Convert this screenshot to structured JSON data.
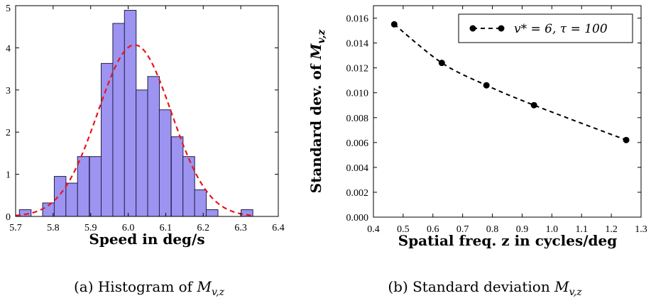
{
  "chart_data": [
    {
      "type": "bar",
      "subtype": "histogram",
      "xlabel": "Speed in deg/s",
      "caption": "(a) Histogram of M_{v,z}",
      "xlim": [
        5.7,
        6.4
      ],
      "ylim": [
        0,
        5
      ],
      "xticks": [
        5.7,
        5.8,
        5.9,
        6.0,
        6.1,
        6.2,
        6.3,
        6.4
      ],
      "xtick_labels": [
        "5.7",
        "5.8",
        "5.9",
        "6.0",
        "6.1",
        "6.2",
        "6.3",
        "6.4"
      ],
      "yticks": [
        0,
        1,
        2,
        3,
        4,
        5
      ],
      "ytick_labels": [
        "0",
        "1",
        "2",
        "3",
        "4",
        "5"
      ],
      "bin_width": 0.0312,
      "bin_starts": [
        5.71,
        5.741,
        5.772,
        5.803,
        5.834,
        5.865,
        5.897,
        5.928,
        5.959,
        5.99,
        6.021,
        6.052,
        6.083,
        6.115,
        6.146,
        6.177,
        6.208,
        6.239,
        6.27,
        6.301
      ],
      "values": [
        0.16,
        0.0,
        0.32,
        0.95,
        0.79,
        1.42,
        1.42,
        3.63,
        4.58,
        4.89,
        3.0,
        3.32,
        2.53,
        1.89,
        1.42,
        0.63,
        0.16,
        0.0,
        0.0,
        0.16
      ],
      "bar_color": "#9d93f0",
      "bar_edge_color": "#1f1f4a",
      "fit_curve": {
        "type": "normal",
        "mean": 6.017,
        "std": 0.098,
        "peak": 4.07,
        "color": "#e8161b",
        "style": "dashed"
      }
    },
    {
      "type": "line",
      "xlabel": "Spatial freq. z in cycles/deg",
      "ylabel": "Standard dev. of M_{v,z}",
      "caption": "(b) Standard deviation M_{v,z}",
      "xlim": [
        0.4,
        1.3
      ],
      "ylim": [
        0.0,
        0.017
      ],
      "xticks": [
        0.4,
        0.5,
        0.6,
        0.7,
        0.8,
        0.9,
        1.0,
        1.1,
        1.2,
        1.3
      ],
      "xtick_labels": [
        "0.4",
        "0.5",
        "0.6",
        "0.7",
        "0.8",
        "0.9",
        "1.0",
        "1.1",
        "1.2",
        "1.3"
      ],
      "yticks": [
        0.0,
        0.002,
        0.004,
        0.006,
        0.008,
        0.01,
        0.012,
        0.014,
        0.016
      ],
      "ytick_labels": [
        "0.000",
        "0.002",
        "0.004",
        "0.006",
        "0.008",
        "0.010",
        "0.012",
        "0.014",
        "0.016"
      ],
      "legend_position": "top-right",
      "series": [
        {
          "name": "v* = 6, τ = 100",
          "x": [
            0.47,
            0.63,
            0.78,
            0.94,
            1.25
          ],
          "y": [
            0.0155,
            0.0124,
            0.0106,
            0.009,
            0.0062
          ],
          "color": "#000000",
          "style": "dashed",
          "marker": "circle"
        }
      ]
    }
  ]
}
